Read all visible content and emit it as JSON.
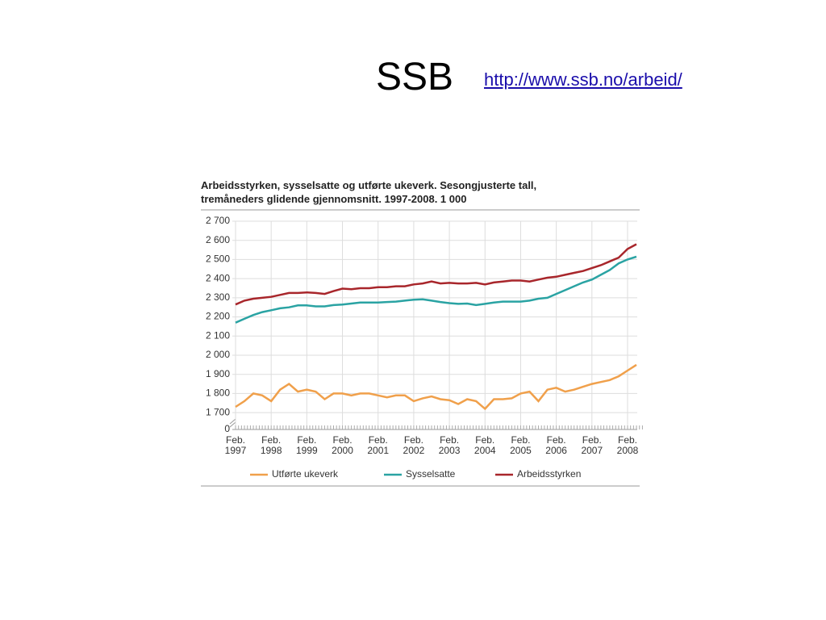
{
  "header": {
    "title": "SSB",
    "link": "http://www.ssb.no/arbeid/"
  },
  "chart_data": {
    "type": "line",
    "title": "Arbeidsstyrken, sysselsatte og utførte ukeverk. Sesongjusterte tall,\ntremåneders glidende gjennomsnitt. 1997-2008. 1 000",
    "categories": [
      "Feb.\n1997",
      null,
      null,
      null,
      "Feb.\n1998",
      null,
      null,
      null,
      "Feb.\n1999",
      null,
      null,
      null,
      "Feb.\n2000",
      null,
      null,
      null,
      "Feb.\n2001",
      null,
      null,
      null,
      "Feb.\n2002",
      null,
      null,
      null,
      "Feb.\n2003",
      null,
      null,
      null,
      "Feb.\n2004",
      null,
      null,
      null,
      "Feb.\n2005",
      null,
      null,
      null,
      "Feb.\n2006",
      null,
      null,
      null,
      "Feb.\n2007",
      null,
      null,
      null,
      "Feb.\n2008",
      null
    ],
    "series": [
      {
        "name": "Utførte ukeverk",
        "color": "#f0a04b",
        "values": [
          1730,
          1760,
          1800,
          1790,
          1760,
          1820,
          1850,
          1810,
          1820,
          1810,
          1770,
          1800,
          1800,
          1790,
          1800,
          1800,
          1790,
          1780,
          1790,
          1790,
          1760,
          1775,
          1785,
          1770,
          1765,
          1745,
          1770,
          1760,
          1720,
          1770,
          1770,
          1775,
          1800,
          1810,
          1760,
          1820,
          1830,
          1810,
          1820,
          1835,
          1850,
          1860,
          1870,
          1890,
          1920,
          1950
        ]
      },
      {
        "name": "Sysselsatte",
        "color": "#2aa3a3",
        "values": [
          2170,
          2190,
          2210,
          2225,
          2235,
          2245,
          2250,
          2260,
          2260,
          2255,
          2255,
          2262,
          2265,
          2270,
          2275,
          2275,
          2275,
          2278,
          2280,
          2285,
          2290,
          2292,
          2285,
          2278,
          2272,
          2268,
          2270,
          2262,
          2268,
          2275,
          2280,
          2280,
          2280,
          2285,
          2295,
          2300,
          2320,
          2340,
          2360,
          2380,
          2395,
          2420,
          2445,
          2480,
          2500,
          2515
        ]
      },
      {
        "name": "Arbeidsstyrken",
        "color": "#a8262b",
        "values": [
          2265,
          2285,
          2295,
          2300,
          2305,
          2315,
          2325,
          2325,
          2328,
          2325,
          2320,
          2335,
          2348,
          2345,
          2350,
          2350,
          2355,
          2355,
          2360,
          2360,
          2370,
          2375,
          2385,
          2375,
          2378,
          2375,
          2375,
          2378,
          2370,
          2380,
          2385,
          2390,
          2390,
          2385,
          2395,
          2405,
          2410,
          2420,
          2430,
          2440,
          2455,
          2470,
          2490,
          2510,
          2555,
          2580
        ]
      }
    ],
    "ylim": [
      0,
      2700
    ],
    "y_break": [
      0,
      1650
    ],
    "yticks": [
      {
        "value": 0,
        "label": "0"
      },
      {
        "value": 1700,
        "label": "1 700"
      },
      {
        "value": 1800,
        "label": "1 800"
      },
      {
        "value": 1900,
        "label": "1 900"
      },
      {
        "value": 2000,
        "label": "2 000"
      },
      {
        "value": 2100,
        "label": "2 100"
      },
      {
        "value": 2200,
        "label": "2 200"
      },
      {
        "value": 2300,
        "label": "2 300"
      },
      {
        "value": 2400,
        "label": "2 400"
      },
      {
        "value": 2500,
        "label": "2 500"
      },
      {
        "value": 2600,
        "label": "2 600"
      },
      {
        "value": 2700,
        "label": "2 700"
      }
    ],
    "grid": true,
    "legend": "bottom"
  }
}
